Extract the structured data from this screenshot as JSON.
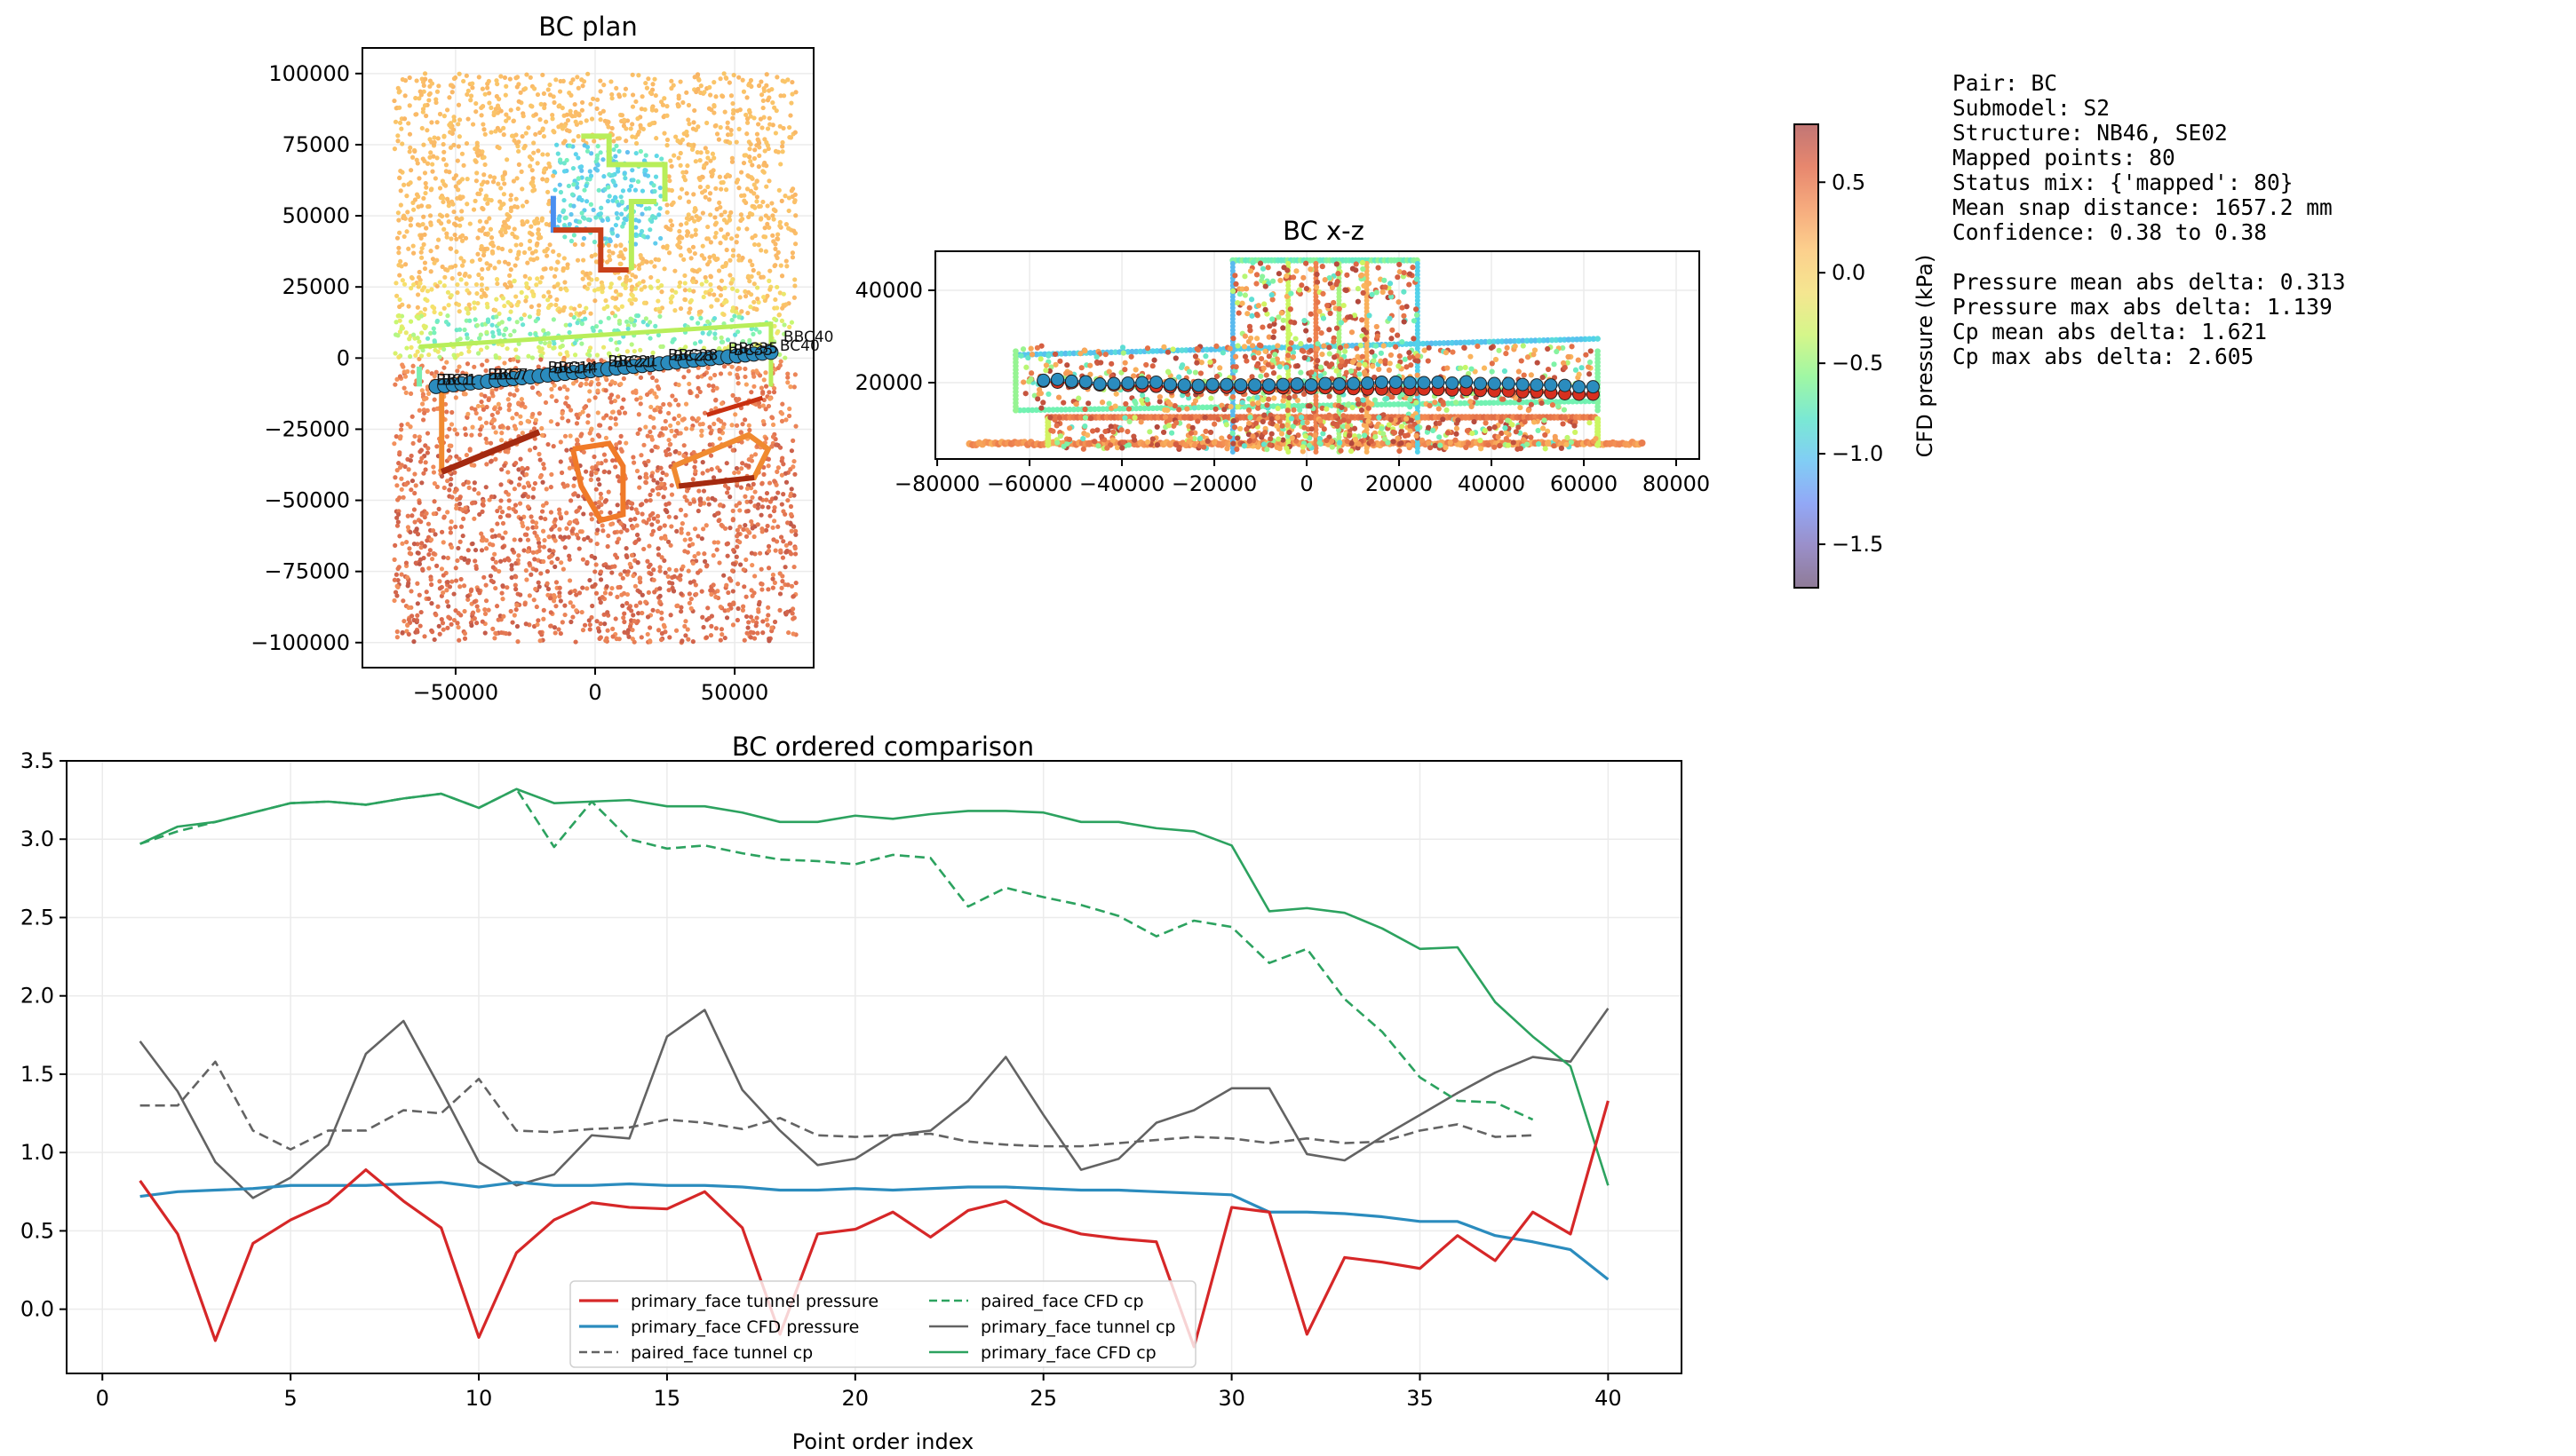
{
  "figure": {
    "info_panel": {
      "lines": [
        "Pair: BC",
        "Submodel: S2",
        "Structure: NB46, SE02",
        "Mapped points: 80",
        "Status mix: {'mapped': 80}",
        "Mean snap distance: 1657.2 mm",
        "Confidence: 0.38 to 0.38",
        "",
        "Pressure mean abs delta: 0.313",
        "Pressure max abs delta: 1.139",
        "Cp mean abs delta: 1.621",
        "Cp max abs delta: 2.605"
      ]
    },
    "colorbar": {
      "label": "CFD pressure (kPa)",
      "range": [
        -1.74,
        0.82
      ],
      "ticks": [
        0.5,
        0.0,
        -0.5,
        -1.0,
        -1.5
      ],
      "tick_labels": [
        "0.5",
        "0.0",
        "−0.5",
        "−1.0",
        "−1.5"
      ],
      "colors": [
        "#c17675",
        "#e7876e",
        "#f6ab7e",
        "#fcd08d",
        "#f5e690",
        "#d5f68a",
        "#9ff7a4",
        "#7ae8d4",
        "#81cdf5",
        "#92a8f6",
        "#9a8fc9",
        "#8f7b97"
      ]
    }
  },
  "chart_data": [
    {
      "type": "scatter",
      "title": "BC plan",
      "xlabel": "",
      "ylabel": "",
      "xlim": [
        -83400,
        78300
      ],
      "ylim": [
        -108800,
        109000
      ],
      "xticks": [
        -50000,
        0,
        50000
      ],
      "xtick_labels": [
        "−50000",
        "0",
        "50000"
      ],
      "yticks": [
        100000,
        75000,
        50000,
        25000,
        0,
        -25000,
        -50000,
        -75000,
        -100000
      ],
      "ytick_labels": [
        "100000",
        "75000",
        "50000",
        "25000",
        "0",
        "−25000",
        "−50000",
        "−75000",
        "−100000"
      ],
      "grid": true,
      "mapped_points": {
        "x_start": -57000,
        "x_end": 63000,
        "y_start": -10000,
        "y_end": 2000,
        "count": 40,
        "color": "#2b8cbe"
      },
      "point_labels": [
        "BC1",
        "BBC1",
        "BC7",
        "BBC7",
        "BC14",
        "BBC14",
        "BC21",
        "BBC21",
        "BC28",
        "BBC28",
        "BC35",
        "BBC35",
        "BC40",
        "BBC40"
      ]
    },
    {
      "type": "scatter",
      "title": "BC x-z",
      "xlabel": "",
      "ylabel": "",
      "xlim": [
        -80400,
        85000
      ],
      "ylim": [
        3460,
        48460
      ],
      "xticks": [
        -80000,
        -60000,
        -40000,
        -20000,
        0,
        20000,
        40000,
        60000,
        80000
      ],
      "xtick_labels": [
        "−80000",
        "−60000",
        "−40000",
        "−20000",
        "0",
        "20000",
        "40000",
        "60000",
        "80000"
      ],
      "yticks": [
        20000,
        40000
      ],
      "ytick_labels": [
        "20000",
        "40000"
      ],
      "grid": true,
      "mapped_points": {
        "x_start": -57000,
        "x_end": 62000,
        "count": 40,
        "cfd_z": [
          20500,
          20700,
          20300,
          20200,
          19700,
          19800,
          19900,
          20000,
          20100,
          19600,
          19500,
          19400,
          19600,
          19600,
          19500,
          19500,
          19500,
          19600,
          19700,
          19500,
          19800,
          19700,
          19800,
          19900,
          20100,
          20100,
          20000,
          20000,
          20100,
          19900,
          20200,
          19800,
          19800,
          19800,
          19600,
          19500,
          19500,
          19400,
          19100,
          19100
        ],
        "tunnel_z": [
          20300,
          20100,
          20000,
          19900,
          19500,
          19500,
          19400,
          19200,
          19200,
          19100,
          19000,
          18900,
          19000,
          19000,
          18900,
          18800,
          18800,
          18900,
          19000,
          18800,
          18900,
          18800,
          18700,
          18600,
          18600,
          18700,
          18500,
          18600,
          18500,
          18400,
          18500,
          18300,
          18200,
          18200,
          18000,
          18000,
          17800,
          17600,
          17500,
          17500
        ],
        "cfd_color": "#2b8cbe",
        "tunnel_color": "#d7301f"
      }
    },
    {
      "type": "line",
      "title": "BC ordered comparison",
      "xlabel": "Point order index",
      "ylabel": "",
      "xlim": [
        -0.95,
        41.95
      ],
      "ylim": [
        -0.41,
        3.5
      ],
      "xticks": [
        0,
        5,
        10,
        15,
        20,
        25,
        30,
        35,
        40
      ],
      "xtick_labels": [
        "0",
        "5",
        "10",
        "15",
        "20",
        "25",
        "30",
        "35",
        "40"
      ],
      "yticks": [
        0.0,
        0.5,
        1.0,
        1.5,
        2.0,
        2.5,
        3.0,
        3.5
      ],
      "ytick_labels": [
        "0.0",
        "0.5",
        "1.0",
        "1.5",
        "2.0",
        "2.5",
        "3.0",
        "3.5"
      ],
      "grid": true,
      "legend_position": "lower-center",
      "series": [
        {
          "name": "primary_face tunnel pressure",
          "color": "#d62728",
          "style": "solid",
          "width": 3.2,
          "x_start": 1,
          "values": [
            0.82,
            0.48,
            -0.2,
            0.42,
            0.57,
            0.68,
            0.89,
            0.69,
            0.52,
            -0.18,
            0.36,
            0.57,
            0.68,
            0.65,
            0.64,
            0.75,
            0.52,
            -0.16,
            0.48,
            0.51,
            0.62,
            0.46,
            0.63,
            0.69,
            0.55,
            0.48,
            0.45,
            0.43,
            -0.24,
            0.65,
            0.62,
            -0.16,
            0.33,
            0.3,
            0.26,
            0.47,
            0.31,
            0.62,
            0.48,
            1.33
          ]
        },
        {
          "name": "primary_face CFD pressure",
          "color": "#2b8cbe",
          "style": "solid",
          "width": 3.2,
          "x_start": 1,
          "values": [
            0.72,
            0.75,
            0.76,
            0.77,
            0.79,
            0.79,
            0.79,
            0.8,
            0.81,
            0.78,
            0.81,
            0.79,
            0.79,
            0.8,
            0.79,
            0.79,
            0.78,
            0.76,
            0.76,
            0.77,
            0.76,
            0.77,
            0.78,
            0.78,
            0.77,
            0.76,
            0.76,
            0.75,
            0.74,
            0.73,
            0.62,
            0.62,
            0.61,
            0.59,
            0.56,
            0.56,
            0.47,
            0.43,
            0.38,
            0.19
          ]
        },
        {
          "name": "paired_face tunnel cp",
          "color": "#636363",
          "style": "dashed",
          "width": 2.6,
          "x_start": 1,
          "values": [
            1.3,
            1.3,
            1.58,
            1.14,
            1.02,
            1.14,
            1.14,
            1.27,
            1.25,
            1.47,
            1.14,
            1.13,
            1.15,
            1.16,
            1.21,
            1.19,
            1.15,
            1.22,
            1.11,
            1.1,
            1.11,
            1.12,
            1.07,
            1.05,
            1.04,
            1.04,
            1.06,
            1.08,
            1.1,
            1.09,
            1.06,
            1.09,
            1.06,
            1.07,
            1.14,
            1.18,
            1.1,
            1.11
          ]
        },
        {
          "name": "paired_face CFD cp",
          "color": "#2ca25f",
          "style": "dashed",
          "width": 2.6,
          "x_start": 1,
          "values": [
            2.97,
            3.05,
            3.11,
            3.17,
            3.23,
            3.24,
            3.22,
            3.26,
            3.29,
            3.2,
            3.32,
            2.95,
            3.24,
            3.0,
            2.94,
            2.96,
            2.91,
            2.87,
            2.86,
            2.84,
            2.9,
            2.88,
            2.57,
            2.69,
            2.63,
            2.58,
            2.51,
            2.38,
            2.48,
            2.44,
            2.21,
            2.3,
            1.98,
            1.77,
            1.48,
            1.33,
            1.32,
            1.21
          ]
        },
        {
          "name": "primary_face tunnel cp",
          "color": "#636363",
          "style": "solid",
          "width": 2.6,
          "x_start": 1,
          "values": [
            1.71,
            1.39,
            0.94,
            0.71,
            0.84,
            1.05,
            1.63,
            1.84,
            1.4,
            0.94,
            0.79,
            0.86,
            1.11,
            1.09,
            1.74,
            1.91,
            1.4,
            1.14,
            0.92,
            0.96,
            1.11,
            1.14,
            1.33,
            1.61,
            1.24,
            0.89,
            0.96,
            1.19,
            1.27,
            1.41,
            1.41,
            0.99,
            0.95,
            1.1,
            1.24,
            1.38,
            1.51,
            1.61,
            1.58,
            1.92
          ]
        },
        {
          "name": "primary_face CFD cp",
          "color": "#2ca25f",
          "style": "solid",
          "width": 2.6,
          "x_start": 1,
          "values": [
            2.97,
            3.08,
            3.11,
            3.17,
            3.23,
            3.24,
            3.22,
            3.26,
            3.29,
            3.2,
            3.32,
            3.23,
            3.24,
            3.25,
            3.21,
            3.21,
            3.17,
            3.11,
            3.11,
            3.15,
            3.13,
            3.16,
            3.18,
            3.18,
            3.17,
            3.11,
            3.11,
            3.07,
            3.05,
            2.96,
            2.54,
            2.56,
            2.53,
            2.43,
            2.3,
            2.31,
            1.96,
            1.74,
            1.55,
            0.79
          ]
        }
      ],
      "legend_order": [
        0,
        1,
        2,
        3,
        4,
        5
      ]
    }
  ]
}
